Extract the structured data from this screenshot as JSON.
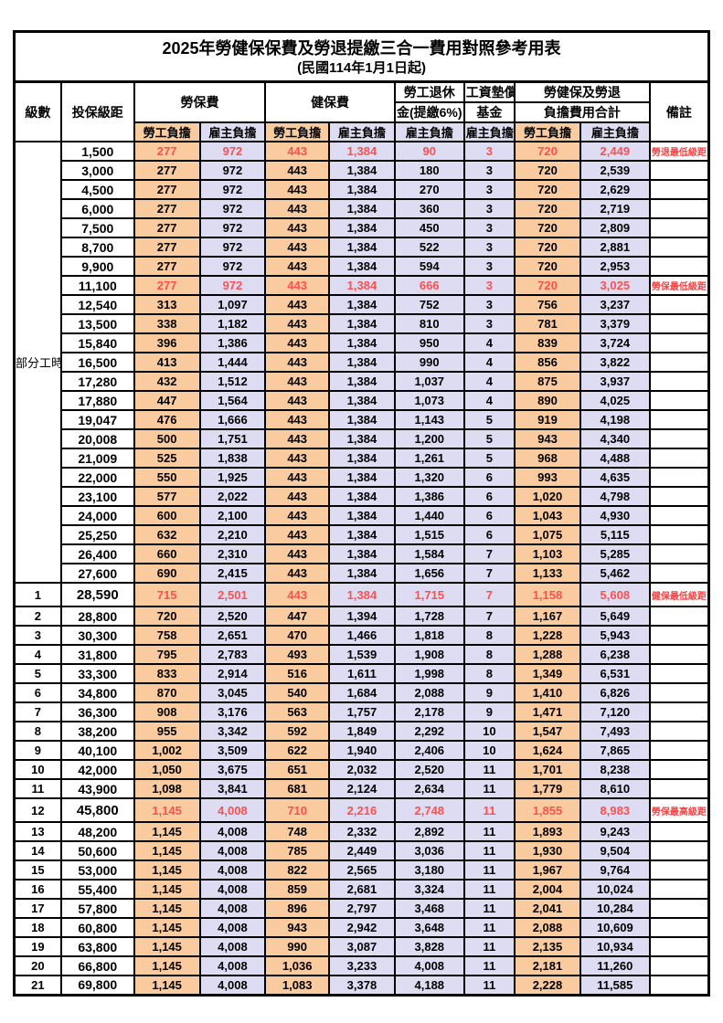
{
  "title": "2025年勞健保保費及勞退提繳三合一費用對照參考用表",
  "subtitle": "(民國114年1月1日起)",
  "columns": {
    "level": "級數",
    "bracket": "投保級距",
    "labor_insurance": "勞保費",
    "health_insurance": "健保費",
    "pension_line1": "勞工退休",
    "pension_line2": "金(提繳6%)",
    "wage_fund_line1": "工資墊償",
    "wage_fund_line2": "基金",
    "total_line1": "勞健保及勞退",
    "total_line2": "負擔費用合計",
    "remark": "備註",
    "employee_share": "勞工負擔",
    "employer_share": "雇主負擔"
  },
  "colors": {
    "employee_bg": "#F9CB9E",
    "employer_bg": "#DEDCF2",
    "highlight_red": "#FA5050",
    "remark_red": "#F84040"
  },
  "part_time_label": "部分工時",
  "part_time_rowspan": 23,
  "rows": [
    {
      "level": "",
      "bracket": "1,500",
      "li_emp": "277",
      "li_er": "972",
      "hi_emp": "443",
      "hi_er": "1,384",
      "pension": "90",
      "fund": "3",
      "tot_emp": "720",
      "tot_er": "2,449",
      "remark": "勞退最低級距",
      "red": true
    },
    {
      "level": "",
      "bracket": "3,000",
      "li_emp": "277",
      "li_er": "972",
      "hi_emp": "443",
      "hi_er": "1,384",
      "pension": "180",
      "fund": "3",
      "tot_emp": "720",
      "tot_er": "2,539",
      "remark": ""
    },
    {
      "level": "",
      "bracket": "4,500",
      "li_emp": "277",
      "li_er": "972",
      "hi_emp": "443",
      "hi_er": "1,384",
      "pension": "270",
      "fund": "3",
      "tot_emp": "720",
      "tot_er": "2,629",
      "remark": ""
    },
    {
      "level": "",
      "bracket": "6,000",
      "li_emp": "277",
      "li_er": "972",
      "hi_emp": "443",
      "hi_er": "1,384",
      "pension": "360",
      "fund": "3",
      "tot_emp": "720",
      "tot_er": "2,719",
      "remark": ""
    },
    {
      "level": "",
      "bracket": "7,500",
      "li_emp": "277",
      "li_er": "972",
      "hi_emp": "443",
      "hi_er": "1,384",
      "pension": "450",
      "fund": "3",
      "tot_emp": "720",
      "tot_er": "2,809",
      "remark": ""
    },
    {
      "level": "",
      "bracket": "8,700",
      "li_emp": "277",
      "li_er": "972",
      "hi_emp": "443",
      "hi_er": "1,384",
      "pension": "522",
      "fund": "3",
      "tot_emp": "720",
      "tot_er": "2,881",
      "remark": ""
    },
    {
      "level": "",
      "bracket": "9,900",
      "li_emp": "277",
      "li_er": "972",
      "hi_emp": "443",
      "hi_er": "1,384",
      "pension": "594",
      "fund": "3",
      "tot_emp": "720",
      "tot_er": "2,953",
      "remark": ""
    },
    {
      "level": "",
      "bracket": "11,100",
      "li_emp": "277",
      "li_er": "972",
      "hi_emp": "443",
      "hi_er": "1,384",
      "pension": "666",
      "fund": "3",
      "tot_emp": "720",
      "tot_er": "3,025",
      "remark": "勞保最低級距",
      "red": true
    },
    {
      "level": "",
      "bracket": "12,540",
      "li_emp": "313",
      "li_er": "1,097",
      "hi_emp": "443",
      "hi_er": "1,384",
      "pension": "752",
      "fund": "3",
      "tot_emp": "756",
      "tot_er": "3,237",
      "remark": ""
    },
    {
      "level": "",
      "bracket": "13,500",
      "li_emp": "338",
      "li_er": "1,182",
      "hi_emp": "443",
      "hi_er": "1,384",
      "pension": "810",
      "fund": "3",
      "tot_emp": "781",
      "tot_er": "3,379",
      "remark": ""
    },
    {
      "level": "",
      "bracket": "15,840",
      "li_emp": "396",
      "li_er": "1,386",
      "hi_emp": "443",
      "hi_er": "1,384",
      "pension": "950",
      "fund": "4",
      "tot_emp": "839",
      "tot_er": "3,724",
      "remark": ""
    },
    {
      "level": "",
      "bracket": "16,500",
      "li_emp": "413",
      "li_er": "1,444",
      "hi_emp": "443",
      "hi_er": "1,384",
      "pension": "990",
      "fund": "4",
      "tot_emp": "856",
      "tot_er": "3,822",
      "remark": ""
    },
    {
      "level": "",
      "bracket": "17,280",
      "li_emp": "432",
      "li_er": "1,512",
      "hi_emp": "443",
      "hi_er": "1,384",
      "pension": "1,037",
      "fund": "4",
      "tot_emp": "875",
      "tot_er": "3,937",
      "remark": ""
    },
    {
      "level": "",
      "bracket": "17,880",
      "li_emp": "447",
      "li_er": "1,564",
      "hi_emp": "443",
      "hi_er": "1,384",
      "pension": "1,073",
      "fund": "4",
      "tot_emp": "890",
      "tot_er": "4,025",
      "remark": ""
    },
    {
      "level": "",
      "bracket": "19,047",
      "li_emp": "476",
      "li_er": "1,666",
      "hi_emp": "443",
      "hi_er": "1,384",
      "pension": "1,143",
      "fund": "5",
      "tot_emp": "919",
      "tot_er": "4,198",
      "remark": ""
    },
    {
      "level": "",
      "bracket": "20,008",
      "li_emp": "500",
      "li_er": "1,751",
      "hi_emp": "443",
      "hi_er": "1,384",
      "pension": "1,200",
      "fund": "5",
      "tot_emp": "943",
      "tot_er": "4,340",
      "remark": ""
    },
    {
      "level": "",
      "bracket": "21,009",
      "li_emp": "525",
      "li_er": "1,838",
      "hi_emp": "443",
      "hi_er": "1,384",
      "pension": "1,261",
      "fund": "5",
      "tot_emp": "968",
      "tot_er": "4,488",
      "remark": ""
    },
    {
      "level": "",
      "bracket": "22,000",
      "li_emp": "550",
      "li_er": "1,925",
      "hi_emp": "443",
      "hi_er": "1,384",
      "pension": "1,320",
      "fund": "6",
      "tot_emp": "993",
      "tot_er": "4,635",
      "remark": ""
    },
    {
      "level": "",
      "bracket": "23,100",
      "li_emp": "577",
      "li_er": "2,022",
      "hi_emp": "443",
      "hi_er": "1,384",
      "pension": "1,386",
      "fund": "6",
      "tot_emp": "1,020",
      "tot_er": "4,798",
      "remark": ""
    },
    {
      "level": "",
      "bracket": "24,000",
      "li_emp": "600",
      "li_er": "2,100",
      "hi_emp": "443",
      "hi_er": "1,384",
      "pension": "1,440",
      "fund": "6",
      "tot_emp": "1,043",
      "tot_er": "4,930",
      "remark": ""
    },
    {
      "level": "",
      "bracket": "25,250",
      "li_emp": "632",
      "li_er": "2,210",
      "hi_emp": "443",
      "hi_er": "1,384",
      "pension": "1,515",
      "fund": "6",
      "tot_emp": "1,075",
      "tot_er": "5,115",
      "remark": ""
    },
    {
      "level": "",
      "bracket": "26,400",
      "li_emp": "660",
      "li_er": "2,310",
      "hi_emp": "443",
      "hi_er": "1,384",
      "pension": "1,584",
      "fund": "7",
      "tot_emp": "1,103",
      "tot_er": "5,285",
      "remark": ""
    },
    {
      "level": "",
      "bracket": "27,600",
      "li_emp": "690",
      "li_er": "2,415",
      "hi_emp": "443",
      "hi_er": "1,384",
      "pension": "1,656",
      "fund": "7",
      "tot_emp": "1,133",
      "tot_er": "5,462",
      "remark": ""
    },
    {
      "level": "1",
      "bracket": "28,590",
      "li_emp": "715",
      "li_er": "2,501",
      "hi_emp": "443",
      "hi_er": "1,384",
      "pension": "1,715",
      "fund": "7",
      "tot_emp": "1,158",
      "tot_er": "5,608",
      "remark": "健保最低級距",
      "red": true,
      "key": true
    },
    {
      "level": "2",
      "bracket": "28,800",
      "li_emp": "720",
      "li_er": "2,520",
      "hi_emp": "447",
      "hi_er": "1,394",
      "pension": "1,728",
      "fund": "7",
      "tot_emp": "1,167",
      "tot_er": "5,649",
      "remark": ""
    },
    {
      "level": "3",
      "bracket": "30,300",
      "li_emp": "758",
      "li_er": "2,651",
      "hi_emp": "470",
      "hi_er": "1,466",
      "pension": "1,818",
      "fund": "8",
      "tot_emp": "1,228",
      "tot_er": "5,943",
      "remark": ""
    },
    {
      "level": "4",
      "bracket": "31,800",
      "li_emp": "795",
      "li_er": "2,783",
      "hi_emp": "493",
      "hi_er": "1,539",
      "pension": "1,908",
      "fund": "8",
      "tot_emp": "1,288",
      "tot_er": "6,238",
      "remark": ""
    },
    {
      "level": "5",
      "bracket": "33,300",
      "li_emp": "833",
      "li_er": "2,914",
      "hi_emp": "516",
      "hi_er": "1,611",
      "pension": "1,998",
      "fund": "8",
      "tot_emp": "1,349",
      "tot_er": "6,531",
      "remark": ""
    },
    {
      "level": "6",
      "bracket": "34,800",
      "li_emp": "870",
      "li_er": "3,045",
      "hi_emp": "540",
      "hi_er": "1,684",
      "pension": "2,088",
      "fund": "9",
      "tot_emp": "1,410",
      "tot_er": "6,826",
      "remark": ""
    },
    {
      "level": "7",
      "bracket": "36,300",
      "li_emp": "908",
      "li_er": "3,176",
      "hi_emp": "563",
      "hi_er": "1,757",
      "pension": "2,178",
      "fund": "9",
      "tot_emp": "1,471",
      "tot_er": "7,120",
      "remark": ""
    },
    {
      "level": "8",
      "bracket": "38,200",
      "li_emp": "955",
      "li_er": "3,342",
      "hi_emp": "592",
      "hi_er": "1,849",
      "pension": "2,292",
      "fund": "10",
      "tot_emp": "1,547",
      "tot_er": "7,493",
      "remark": ""
    },
    {
      "level": "9",
      "bracket": "40,100",
      "li_emp": "1,002",
      "li_er": "3,509",
      "hi_emp": "622",
      "hi_er": "1,940",
      "pension": "2,406",
      "fund": "10",
      "tot_emp": "1,624",
      "tot_er": "7,865",
      "remark": ""
    },
    {
      "level": "10",
      "bracket": "42,000",
      "li_emp": "1,050",
      "li_er": "3,675",
      "hi_emp": "651",
      "hi_er": "2,032",
      "pension": "2,520",
      "fund": "11",
      "tot_emp": "1,701",
      "tot_er": "8,238",
      "remark": ""
    },
    {
      "level": "11",
      "bracket": "43,900",
      "li_emp": "1,098",
      "li_er": "3,841",
      "hi_emp": "681",
      "hi_er": "2,124",
      "pension": "2,634",
      "fund": "11",
      "tot_emp": "1,779",
      "tot_er": "8,610",
      "remark": ""
    },
    {
      "level": "12",
      "bracket": "45,800",
      "li_emp": "1,145",
      "li_er": "4,008",
      "hi_emp": "710",
      "hi_er": "2,216",
      "pension": "2,748",
      "fund": "11",
      "tot_emp": "1,855",
      "tot_er": "8,983",
      "remark": "勞保最高級距",
      "red": true,
      "key": true
    },
    {
      "level": "13",
      "bracket": "48,200",
      "li_emp": "1,145",
      "li_er": "4,008",
      "hi_emp": "748",
      "hi_er": "2,332",
      "pension": "2,892",
      "fund": "11",
      "tot_emp": "1,893",
      "tot_er": "9,243",
      "remark": ""
    },
    {
      "level": "14",
      "bracket": "50,600",
      "li_emp": "1,145",
      "li_er": "4,008",
      "hi_emp": "785",
      "hi_er": "2,449",
      "pension": "3,036",
      "fund": "11",
      "tot_emp": "1,930",
      "tot_er": "9,504",
      "remark": ""
    },
    {
      "level": "15",
      "bracket": "53,000",
      "li_emp": "1,145",
      "li_er": "4,008",
      "hi_emp": "822",
      "hi_er": "2,565",
      "pension": "3,180",
      "fund": "11",
      "tot_emp": "1,967",
      "tot_er": "9,764",
      "remark": ""
    },
    {
      "level": "16",
      "bracket": "55,400",
      "li_emp": "1,145",
      "li_er": "4,008",
      "hi_emp": "859",
      "hi_er": "2,681",
      "pension": "3,324",
      "fund": "11",
      "tot_emp": "2,004",
      "tot_er": "10,024",
      "remark": ""
    },
    {
      "level": "17",
      "bracket": "57,800",
      "li_emp": "1,145",
      "li_er": "4,008",
      "hi_emp": "896",
      "hi_er": "2,797",
      "pension": "3,468",
      "fund": "11",
      "tot_emp": "2,041",
      "tot_er": "10,284",
      "remark": ""
    },
    {
      "level": "18",
      "bracket": "60,800",
      "li_emp": "1,145",
      "li_er": "4,008",
      "hi_emp": "943",
      "hi_er": "2,942",
      "pension": "3,648",
      "fund": "11",
      "tot_emp": "2,088",
      "tot_er": "10,609",
      "remark": ""
    },
    {
      "level": "19",
      "bracket": "63,800",
      "li_emp": "1,145",
      "li_er": "4,008",
      "hi_emp": "990",
      "hi_er": "3,087",
      "pension": "3,828",
      "fund": "11",
      "tot_emp": "2,135",
      "tot_er": "10,934",
      "remark": ""
    },
    {
      "level": "20",
      "bracket": "66,800",
      "li_emp": "1,145",
      "li_er": "4,008",
      "hi_emp": "1,036",
      "hi_er": "3,233",
      "pension": "4,008",
      "fund": "11",
      "tot_emp": "2,181",
      "tot_er": "11,260",
      "remark": ""
    },
    {
      "level": "21",
      "bracket": "69,800",
      "li_emp": "1,145",
      "li_er": "4,008",
      "hi_emp": "1,083",
      "hi_er": "3,378",
      "pension": "4,188",
      "fund": "11",
      "tot_emp": "2,228",
      "tot_er": "11,585",
      "remark": ""
    }
  ]
}
